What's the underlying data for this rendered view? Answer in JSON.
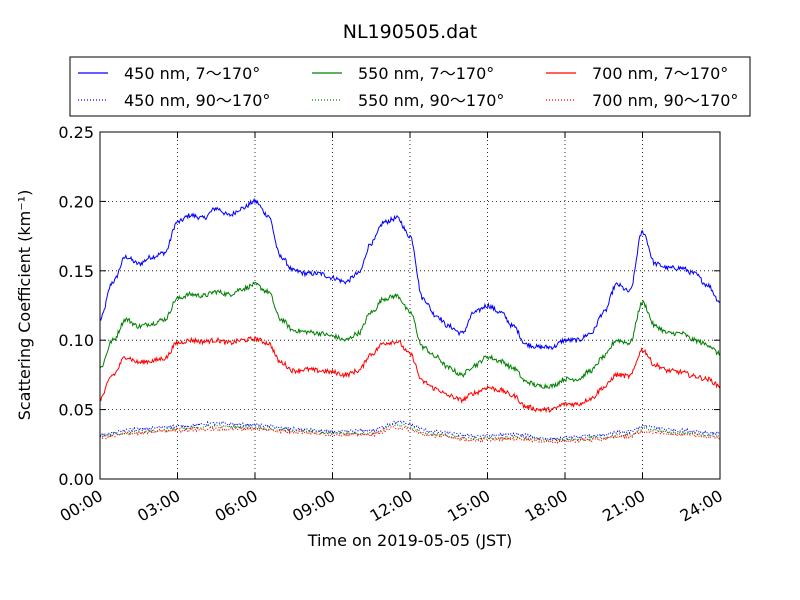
{
  "chart_data": {
    "type": "line",
    "title": "NL190505.dat",
    "xlabel": "Time on 2019-05-05 (JST)",
    "ylabel": "Scattering Coefficient (km⁻¹)",
    "xlim": [
      "00:00",
      "24:00"
    ],
    "ylim": [
      0,
      0.25
    ],
    "xticks": [
      "00:00",
      "03:00",
      "06:00",
      "09:00",
      "12:00",
      "15:00",
      "18:00",
      "21:00",
      "24:00"
    ],
    "yticks": [
      "0.00",
      "0.05",
      "0.10",
      "0.15",
      "0.20",
      "0.25"
    ],
    "grid": true,
    "legend_position": "top",
    "series": [
      {
        "name": "450 nm, 7～170°",
        "color": "#0000ff",
        "style": "solid",
        "x": [
          "00:00",
          "00:30",
          "01:00",
          "01:30",
          "02:00",
          "02:30",
          "03:00",
          "03:30",
          "04:00",
          "04:30",
          "05:00",
          "05:30",
          "06:00",
          "06:30",
          "07:00",
          "07:30",
          "08:00",
          "08:30",
          "09:00",
          "09:30",
          "10:00",
          "10:30",
          "11:00",
          "11:30",
          "12:00",
          "12:30",
          "13:00",
          "13:30",
          "14:00",
          "14:30",
          "15:00",
          "15:30",
          "16:00",
          "16:30",
          "17:00",
          "17:30",
          "18:00",
          "18:30",
          "19:00",
          "19:30",
          "20:00",
          "20:30",
          "21:00",
          "21:30",
          "22:00",
          "22:30",
          "23:00",
          "23:30",
          "24:00"
        ],
        "values": [
          0.115,
          0.142,
          0.16,
          0.155,
          0.16,
          0.163,
          0.185,
          0.19,
          0.188,
          0.195,
          0.19,
          0.195,
          0.2,
          0.19,
          0.16,
          0.15,
          0.148,
          0.148,
          0.145,
          0.142,
          0.148,
          0.17,
          0.185,
          0.188,
          0.175,
          0.13,
          0.118,
          0.11,
          0.105,
          0.12,
          0.125,
          0.12,
          0.11,
          0.097,
          0.095,
          0.095,
          0.1,
          0.1,
          0.105,
          0.12,
          0.14,
          0.135,
          0.178,
          0.155,
          0.152,
          0.152,
          0.148,
          0.14,
          0.128
        ]
      },
      {
        "name": "550 nm, 7～170°",
        "color": "#008000",
        "style": "solid",
        "x": [
          "00:00",
          "00:30",
          "01:00",
          "01:30",
          "02:00",
          "02:30",
          "03:00",
          "03:30",
          "04:00",
          "04:30",
          "05:00",
          "05:30",
          "06:00",
          "06:30",
          "07:00",
          "07:30",
          "08:00",
          "08:30",
          "09:00",
          "09:30",
          "10:00",
          "10:30",
          "11:00",
          "11:30",
          "12:00",
          "12:30",
          "13:00",
          "13:30",
          "14:00",
          "14:30",
          "15:00",
          "15:30",
          "16:00",
          "16:30",
          "17:00",
          "17:30",
          "18:00",
          "18:30",
          "19:00",
          "19:30",
          "20:00",
          "20:30",
          "21:00",
          "21:30",
          "22:00",
          "22:30",
          "23:00",
          "23:30",
          "24:00"
        ],
        "values": [
          0.08,
          0.1,
          0.115,
          0.11,
          0.112,
          0.115,
          0.13,
          0.133,
          0.132,
          0.135,
          0.133,
          0.137,
          0.14,
          0.135,
          0.115,
          0.107,
          0.106,
          0.105,
          0.103,
          0.1,
          0.105,
          0.12,
          0.13,
          0.132,
          0.12,
          0.095,
          0.088,
          0.08,
          0.075,
          0.082,
          0.088,
          0.085,
          0.08,
          0.07,
          0.067,
          0.067,
          0.072,
          0.072,
          0.078,
          0.088,
          0.1,
          0.098,
          0.127,
          0.11,
          0.105,
          0.105,
          0.1,
          0.097,
          0.09
        ]
      },
      {
        "name": "700 nm, 7～170°",
        "color": "#ff0000",
        "style": "solid",
        "x": [
          "00:00",
          "00:30",
          "01:00",
          "01:30",
          "02:00",
          "02:30",
          "03:00",
          "03:30",
          "04:00",
          "04:30",
          "05:00",
          "05:30",
          "06:00",
          "06:30",
          "07:00",
          "07:30",
          "08:00",
          "08:30",
          "09:00",
          "09:30",
          "10:00",
          "10:30",
          "11:00",
          "11:30",
          "12:00",
          "12:30",
          "13:00",
          "13:30",
          "14:00",
          "14:30",
          "15:00",
          "15:30",
          "16:00",
          "16:30",
          "17:00",
          "17:30",
          "18:00",
          "18:30",
          "19:00",
          "19:30",
          "20:00",
          "20:30",
          "21:00",
          "21:30",
          "22:00",
          "22:30",
          "23:00",
          "23:30",
          "24:00"
        ],
        "values": [
          0.058,
          0.075,
          0.088,
          0.084,
          0.085,
          0.087,
          0.098,
          0.1,
          0.099,
          0.1,
          0.098,
          0.1,
          0.101,
          0.098,
          0.084,
          0.078,
          0.079,
          0.078,
          0.077,
          0.075,
          0.078,
          0.09,
          0.098,
          0.099,
          0.09,
          0.07,
          0.065,
          0.06,
          0.057,
          0.062,
          0.066,
          0.064,
          0.06,
          0.052,
          0.05,
          0.05,
          0.054,
          0.054,
          0.058,
          0.066,
          0.075,
          0.074,
          0.093,
          0.082,
          0.078,
          0.077,
          0.074,
          0.072,
          0.067
        ]
      },
      {
        "name": "450 nm, 90～170°",
        "color": "#0000ff",
        "style": "dotted",
        "x": [
          "00:00",
          "01:30",
          "03:00",
          "04:30",
          "06:00",
          "07:30",
          "09:00",
          "10:30",
          "11:30",
          "13:00",
          "14:30",
          "16:00",
          "17:30",
          "19:00",
          "20:30",
          "21:00",
          "22:30",
          "24:00"
        ],
        "values": [
          0.032,
          0.036,
          0.038,
          0.04,
          0.039,
          0.036,
          0.034,
          0.035,
          0.041,
          0.034,
          0.031,
          0.032,
          0.029,
          0.031,
          0.034,
          0.038,
          0.035,
          0.033
        ]
      },
      {
        "name": "550 nm, 90～170°",
        "color": "#008000",
        "style": "dotted",
        "x": [
          "00:00",
          "01:30",
          "03:00",
          "04:30",
          "06:00",
          "07:30",
          "09:00",
          "10:30",
          "11:30",
          "13:00",
          "14:30",
          "16:00",
          "17:30",
          "19:00",
          "20:30",
          "21:00",
          "22:30",
          "24:00"
        ],
        "values": [
          0.031,
          0.034,
          0.036,
          0.038,
          0.037,
          0.035,
          0.033,
          0.033,
          0.039,
          0.032,
          0.029,
          0.03,
          0.028,
          0.029,
          0.032,
          0.036,
          0.033,
          0.031
        ]
      },
      {
        "name": "700 nm, 90～170°",
        "color": "#ff0000",
        "style": "dotted",
        "x": [
          "00:00",
          "01:30",
          "03:00",
          "04:30",
          "06:00",
          "07:30",
          "09:00",
          "10:30",
          "11:30",
          "13:00",
          "14:30",
          "16:00",
          "17:30",
          "19:00",
          "20:30",
          "21:00",
          "22:30",
          "24:00"
        ],
        "values": [
          0.03,
          0.033,
          0.035,
          0.036,
          0.036,
          0.034,
          0.032,
          0.032,
          0.037,
          0.031,
          0.028,
          0.029,
          0.027,
          0.028,
          0.031,
          0.034,
          0.032,
          0.03
        ]
      }
    ]
  }
}
